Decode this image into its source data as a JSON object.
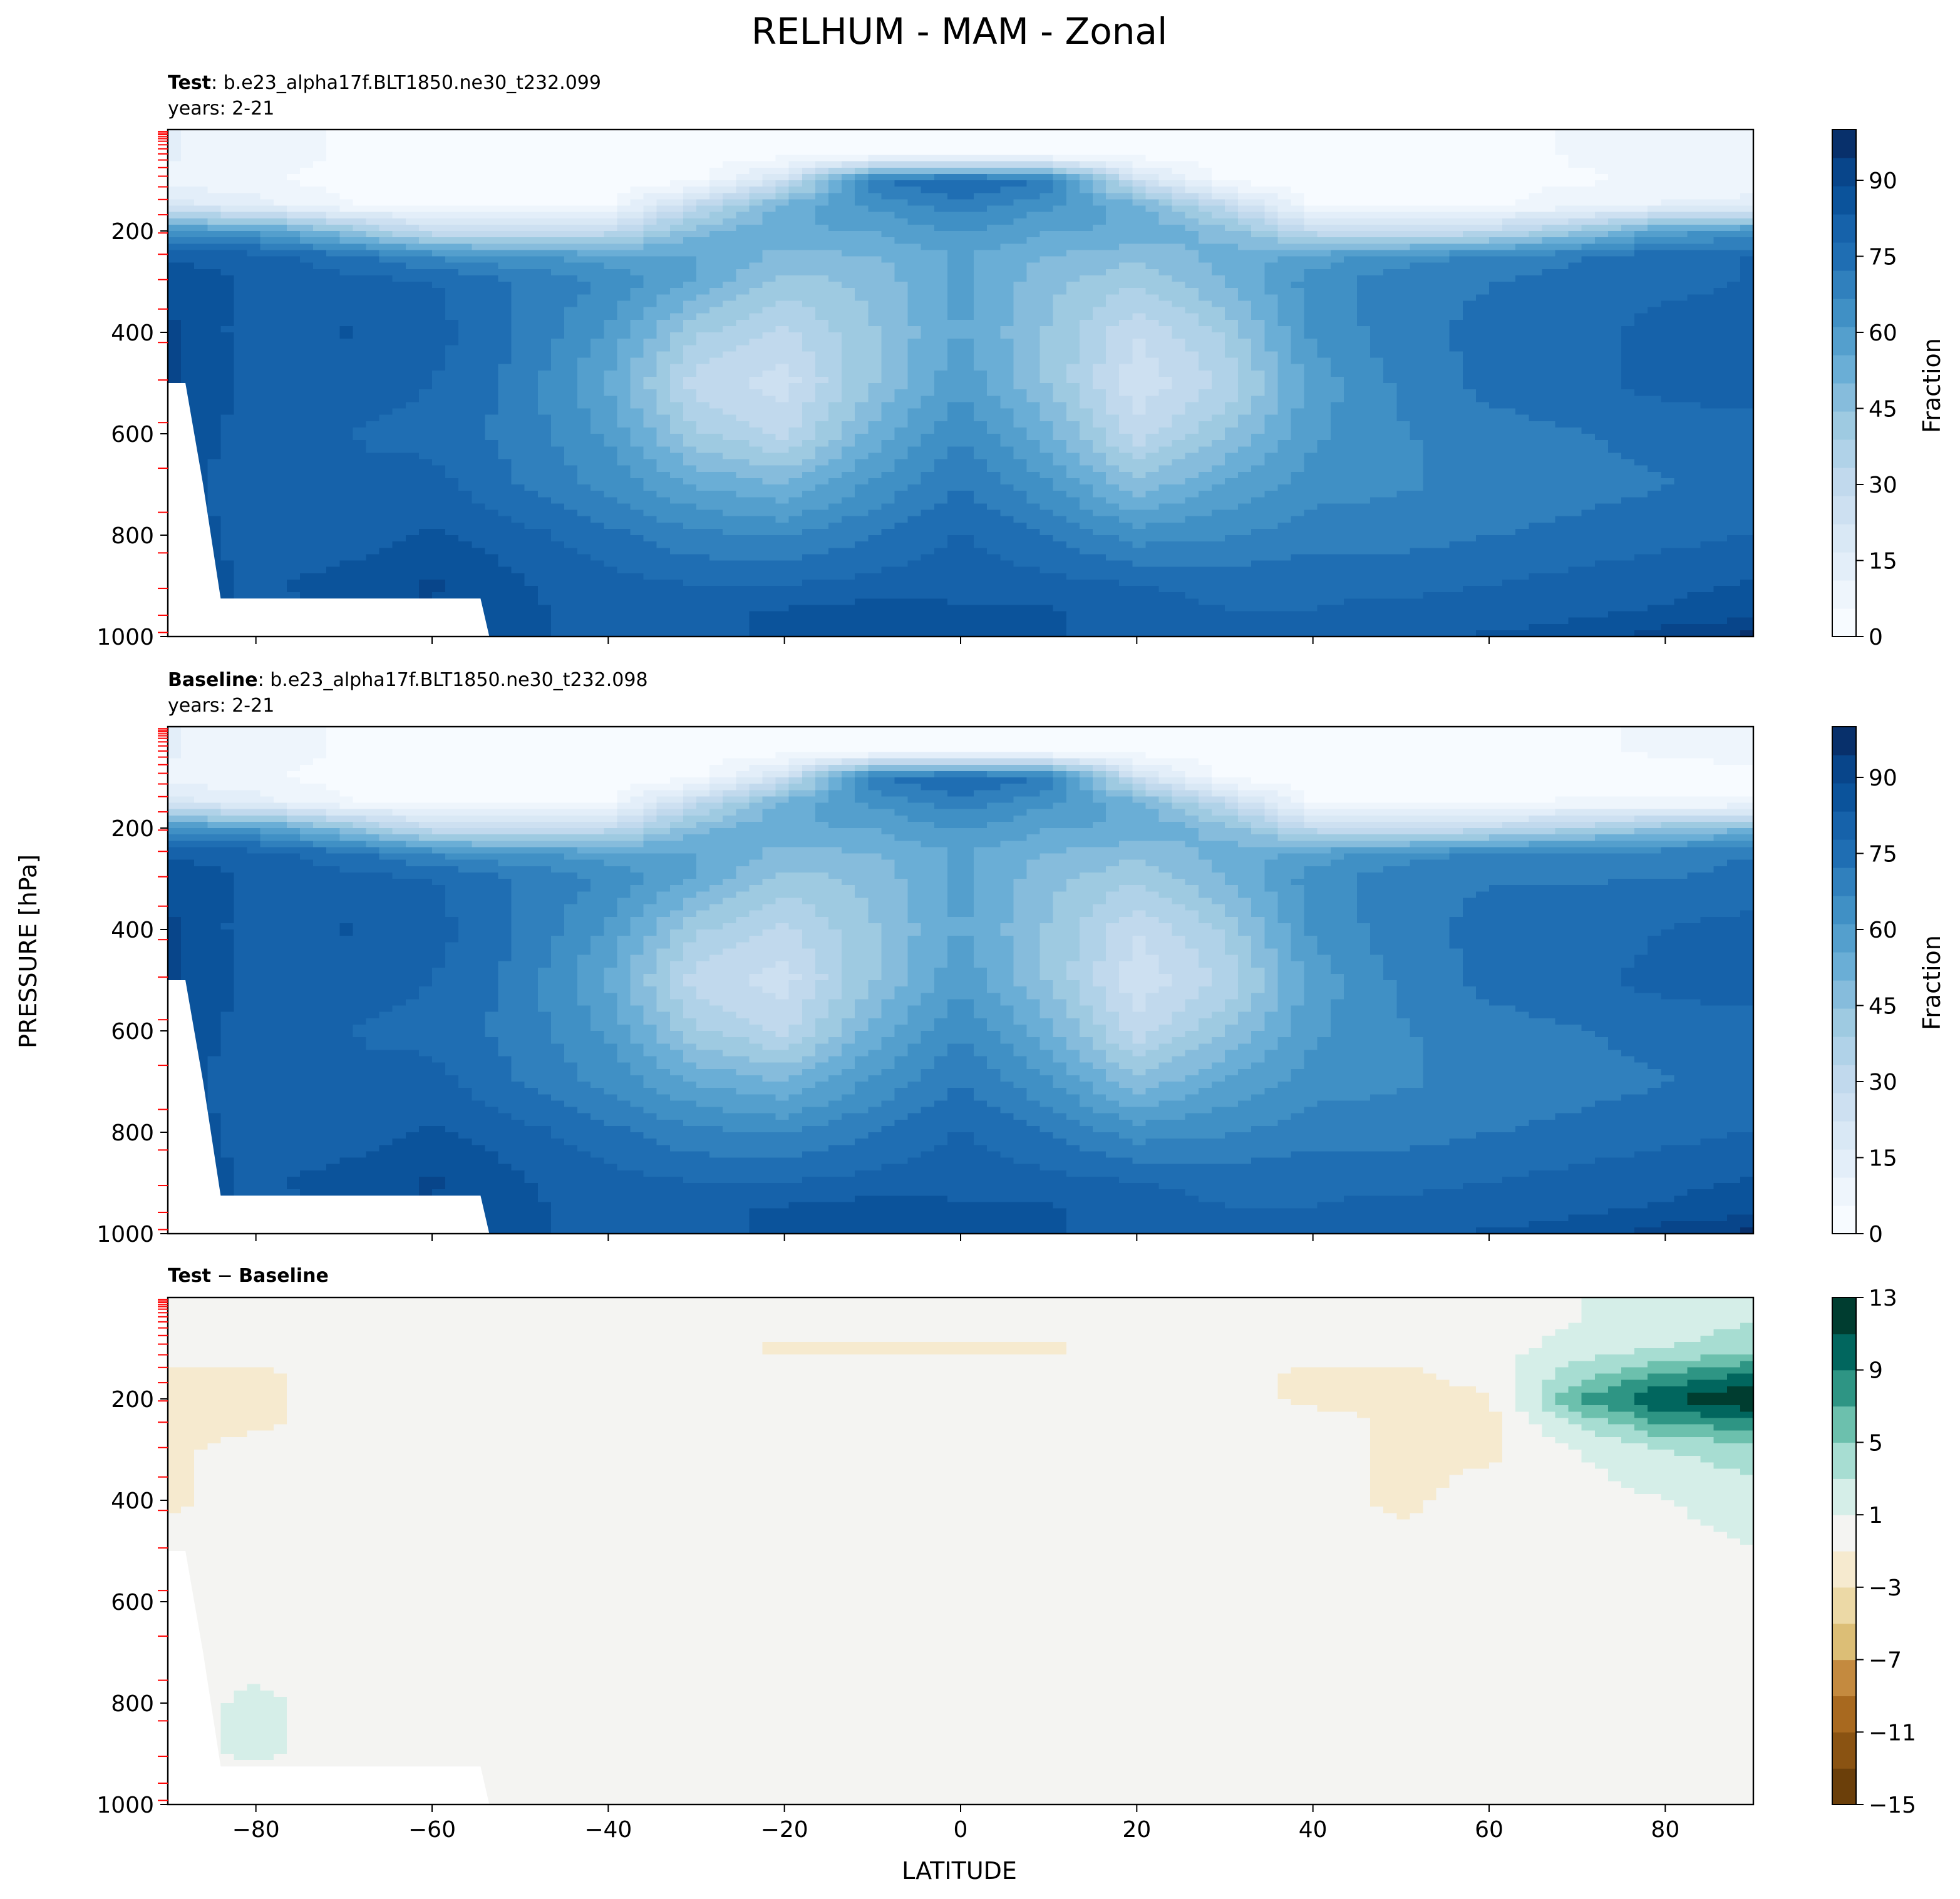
{
  "figure": {
    "title": "RELHUM - MAM - Zonal",
    "ylabel": "PRESSURE [hPa]",
    "xlabel": "LATITUDE"
  },
  "colors": {
    "blues": [
      "#f7fbff",
      "#eef5fc",
      "#e3eef9",
      "#d9e8f5",
      "#cde0f1",
      "#c1d9ed",
      "#b0d2e8",
      "#9ecae1",
      "#86bcdc",
      "#6aaed6",
      "#549fcd",
      "#4090c5",
      "#3080bd",
      "#1f6eb3",
      "#1662aa",
      "#0b539b",
      "#08458a",
      "#08306b"
    ],
    "diff": [
      "#6b3f0a",
      "#8a5312",
      "#a8691f",
      "#c48a3f",
      "#dcbe76",
      "#ecd9a6",
      "#f6eacf",
      "#f4f4f2",
      "#d5eee8",
      "#a7ddd2",
      "#6cc0ad",
      "#2e9584",
      "#01665e",
      "#003d30"
    ],
    "mask_red": "#ff0000"
  },
  "panels": [
    {
      "label_bold": "Test",
      "label_rest": ": b.e23_alpha17f.BLT1850.ne30_t232.099",
      "years": "years: 2-21",
      "colorbar_label": "Fraction"
    },
    {
      "label_bold": "Baseline",
      "label_rest": ": b.e23_alpha17f.BLT1850.ne30_t232.098",
      "years": "years: 2-21",
      "colorbar_label": "Fraction"
    },
    {
      "label_bold": "Test",
      "label_mid": " − ",
      "label_bold2": "Baseline",
      "years": "",
      "colorbar_label": ""
    }
  ],
  "chart_data": [
    {
      "type": "heatmap",
      "title": "Test : b.e23_alpha17f.BLT1850.ne30_t232.099",
      "subtitle": "years: 2-21",
      "xlabel": "LATITUDE",
      "ylabel": "PRESSURE [hPa]",
      "xlim": [
        -90,
        90
      ],
      "ylim": [
        1000,
        0
      ],
      "xticks": [
        -80,
        -60,
        -40,
        -20,
        0,
        20,
        40,
        60,
        80
      ],
      "yticks": [
        200,
        400,
        600,
        800,
        1000
      ],
      "colorbar": {
        "label": "Fraction",
        "range": [
          0,
          100
        ],
        "ticks": [
          0,
          15,
          30,
          45,
          60,
          75,
          90
        ],
        "colormap": "Blues"
      },
      "x": [
        -90,
        -80,
        -70,
        -60,
        -50,
        -40,
        -30,
        -20,
        -10,
        0,
        10,
        20,
        30,
        40,
        50,
        60,
        70,
        80,
        90
      ],
      "y": [
        50,
        100,
        150,
        200,
        250,
        300,
        400,
        500,
        600,
        700,
        800,
        900,
        950,
        1000
      ],
      "z": [
        [
          12,
          8,
          5,
          3,
          3,
          3,
          3,
          3,
          3,
          3,
          3,
          3,
          3,
          3,
          3,
          4,
          6,
          8,
          9
        ],
        [
          8,
          6,
          4,
          3,
          3,
          3,
          3,
          25,
          72,
          78,
          72,
          25,
          3,
          3,
          3,
          4,
          5,
          6,
          7
        ],
        [
          20,
          14,
          6,
          3,
          3,
          5,
          30,
          52,
          62,
          70,
          62,
          52,
          30,
          5,
          3,
          5,
          8,
          12,
          14
        ],
        [
          62,
          60,
          45,
          28,
          25,
          30,
          48,
          55,
          56,
          62,
          56,
          55,
          48,
          30,
          25,
          30,
          42,
          58,
          62
        ],
        [
          82,
          80,
          74,
          66,
          62,
          58,
          56,
          48,
          50,
          56,
          50,
          46,
          52,
          58,
          64,
          68,
          72,
          76,
          78
        ],
        [
          88,
          82,
          80,
          78,
          72,
          66,
          55,
          42,
          46,
          58,
          46,
          40,
          50,
          64,
          70,
          72,
          74,
          76,
          78
        ],
        [
          90,
          80,
          84,
          80,
          72,
          60,
          40,
          32,
          44,
          56,
          44,
          28,
          40,
          62,
          70,
          74,
          76,
          80,
          82
        ],
        [
          90,
          82,
          80,
          78,
          70,
          55,
          30,
          25,
          44,
          60,
          44,
          24,
          34,
          58,
          68,
          74,
          76,
          80,
          80
        ],
        [
          88,
          80,
          78,
          76,
          70,
          60,
          40,
          32,
          52,
          66,
          52,
          30,
          44,
          60,
          66,
          70,
          72,
          74,
          76
        ],
        [
          88,
          78,
          78,
          80,
          72,
          65,
          55,
          50,
          62,
          72,
          62,
          46,
          56,
          64,
          66,
          68,
          70,
          72,
          74
        ],
        [
          90,
          78,
          80,
          84,
          80,
          74,
          68,
          66,
          72,
          78,
          72,
          64,
          66,
          70,
          70,
          72,
          74,
          76,
          78
        ],
        [
          90,
          82,
          86,
          90,
          84,
          80,
          78,
          78,
          80,
          82,
          80,
          78,
          76,
          76,
          76,
          78,
          80,
          82,
          84
        ],
        [
          90,
          80,
          84,
          88,
          84,
          82,
          82,
          84,
          86,
          84,
          84,
          80,
          78,
          78,
          80,
          80,
          82,
          84,
          86
        ],
        [
          90,
          82,
          84,
          88,
          84,
          82,
          82,
          84,
          86,
          84,
          84,
          80,
          78,
          78,
          82,
          84,
          86,
          92,
          96
        ]
      ]
    },
    {
      "type": "heatmap",
      "title": "Baseline : b.e23_alpha17f.BLT1850.ne30_t232.098",
      "subtitle": "years: 2-21",
      "xlabel": "LATITUDE",
      "ylabel": "PRESSURE [hPa]",
      "xlim": [
        -90,
        90
      ],
      "ylim": [
        1000,
        0
      ],
      "xticks": [
        -80,
        -60,
        -40,
        -20,
        0,
        20,
        40,
        60,
        80
      ],
      "yticks": [
        200,
        400,
        600,
        800,
        1000
      ],
      "colorbar": {
        "label": "Fraction",
        "range": [
          0,
          100
        ],
        "ticks": [
          0,
          15,
          30,
          45,
          60,
          75,
          90
        ],
        "colormap": "Blues"
      },
      "x": [
        -90,
        -80,
        -70,
        -60,
        -50,
        -40,
        -30,
        -20,
        -10,
        0,
        10,
        20,
        30,
        40,
        50,
        60,
        70,
        80,
        90
      ],
      "y": [
        50,
        100,
        150,
        200,
        250,
        300,
        400,
        500,
        600,
        700,
        800,
        900,
        950,
        1000
      ],
      "z": [
        [
          12,
          8,
          5,
          3,
          3,
          3,
          3,
          3,
          3,
          3,
          3,
          3,
          3,
          3,
          3,
          4,
          5,
          6,
          7
        ],
        [
          8,
          6,
          4,
          3,
          3,
          3,
          3,
          25,
          72,
          78,
          72,
          25,
          3,
          3,
          3,
          4,
          4,
          4,
          4
        ],
        [
          20,
          14,
          6,
          3,
          3,
          5,
          30,
          52,
          62,
          70,
          62,
          52,
          30,
          5,
          3,
          5,
          6,
          6,
          6
        ],
        [
          62,
          60,
          45,
          28,
          25,
          30,
          48,
          55,
          56,
          62,
          56,
          55,
          48,
          30,
          25,
          30,
          36,
          44,
          48
        ],
        [
          82,
          80,
          74,
          66,
          62,
          58,
          56,
          48,
          50,
          56,
          50,
          46,
          52,
          58,
          64,
          68,
          70,
          70,
          72
        ],
        [
          88,
          82,
          80,
          78,
          72,
          66,
          55,
          42,
          46,
          58,
          46,
          40,
          50,
          64,
          70,
          72,
          72,
          72,
          74
        ],
        [
          90,
          80,
          84,
          80,
          72,
          60,
          40,
          32,
          44,
          56,
          44,
          28,
          40,
          62,
          70,
          74,
          74,
          78,
          80
        ],
        [
          90,
          82,
          80,
          78,
          70,
          55,
          30,
          25,
          44,
          60,
          44,
          24,
          34,
          58,
          68,
          74,
          76,
          80,
          80
        ],
        [
          88,
          80,
          78,
          76,
          70,
          60,
          40,
          32,
          52,
          66,
          52,
          30,
          44,
          60,
          66,
          70,
          72,
          74,
          76
        ],
        [
          88,
          78,
          78,
          80,
          72,
          65,
          55,
          50,
          62,
          72,
          62,
          46,
          56,
          64,
          66,
          68,
          70,
          72,
          74
        ],
        [
          90,
          78,
          80,
          84,
          80,
          74,
          68,
          66,
          72,
          78,
          72,
          64,
          66,
          70,
          70,
          72,
          74,
          76,
          78
        ],
        [
          90,
          82,
          86,
          90,
          84,
          80,
          78,
          78,
          80,
          82,
          80,
          78,
          76,
          76,
          76,
          78,
          80,
          82,
          84
        ],
        [
          90,
          80,
          84,
          88,
          84,
          82,
          82,
          84,
          86,
          84,
          84,
          80,
          78,
          78,
          80,
          80,
          82,
          84,
          86
        ],
        [
          90,
          82,
          84,
          88,
          84,
          82,
          82,
          84,
          86,
          84,
          84,
          80,
          78,
          78,
          82,
          84,
          86,
          92,
          96
        ]
      ]
    },
    {
      "type": "heatmap",
      "title": "Test − Baseline",
      "xlabel": "LATITUDE",
      "ylabel": "PRESSURE [hPa]",
      "xlim": [
        -90,
        90
      ],
      "ylim": [
        1000,
        0
      ],
      "xticks": [
        -80,
        -60,
        -40,
        -20,
        0,
        20,
        40,
        60,
        80
      ],
      "yticks": [
        200,
        400,
        600,
        800,
        1000
      ],
      "colorbar": {
        "label": "",
        "range": [
          -15,
          13
        ],
        "ticks": [
          -15,
          -11,
          -7,
          -3,
          1,
          5,
          9,
          13
        ],
        "colormap": "BrBG"
      },
      "x": [
        -90,
        -80,
        -70,
        -60,
        -50,
        -40,
        -30,
        -20,
        -10,
        0,
        10,
        20,
        30,
        40,
        50,
        60,
        70,
        80,
        90
      ],
      "y": [
        50,
        100,
        150,
        200,
        250,
        300,
        400,
        500,
        600,
        700,
        800,
        900,
        950,
        1000
      ],
      "z": [
        [
          0,
          0,
          0,
          0,
          0,
          0,
          0,
          0,
          0,
          0,
          0,
          0,
          0,
          0,
          0,
          0,
          1,
          2,
          3
        ],
        [
          0,
          0,
          0,
          0,
          0,
          0,
          0,
          -1.5,
          -1.5,
          -1.5,
          -1.5,
          0,
          0,
          0,
          0,
          0,
          2,
          3,
          4
        ],
        [
          -1.5,
          -1.5,
          0,
          0,
          0,
          0,
          0,
          0,
          0,
          0,
          0,
          0,
          0,
          -1.5,
          -1.5,
          0,
          4,
          7,
          9
        ],
        [
          -1.5,
          -1.5,
          0,
          0,
          0,
          0,
          0,
          0,
          0,
          0,
          0,
          0,
          0,
          -1.5,
          -1.5,
          -1.5,
          7,
          11,
          13
        ],
        [
          -1.5,
          -1.5,
          0,
          0,
          0,
          0,
          0,
          0,
          0,
          0,
          0,
          0,
          0,
          0,
          -1.5,
          -1.5,
          3,
          7,
          8
        ],
        [
          -1.5,
          0,
          0,
          0,
          0,
          0,
          0,
          0,
          0,
          0,
          0,
          0,
          0,
          0,
          -1.5,
          -1.5,
          1,
          3,
          4
        ],
        [
          -1.5,
          0,
          0,
          0,
          0,
          0,
          0,
          0,
          0,
          0,
          0,
          0,
          0,
          0,
          -1.5,
          0,
          0,
          1,
          2
        ],
        [
          0,
          0,
          0,
          0,
          0,
          0,
          0,
          0,
          0,
          0,
          0,
          0,
          0,
          0,
          0,
          0,
          0,
          0,
          1
        ],
        [
          0,
          0,
          0,
          0,
          0,
          0,
          0,
          0,
          0,
          0,
          0,
          0,
          0,
          0,
          0,
          0,
          0,
          0,
          0
        ],
        [
          0,
          0,
          0,
          0,
          0,
          0,
          0,
          0,
          0,
          0,
          0,
          0,
          0,
          0,
          0,
          0,
          0,
          0,
          0
        ],
        [
          0,
          1.5,
          0,
          0,
          0,
          0,
          0,
          0,
          0,
          0,
          0,
          0,
          0,
          0,
          0,
          0,
          0,
          0,
          0
        ],
        [
          0,
          1.5,
          0,
          0,
          0,
          0,
          0,
          0,
          0,
          0,
          0,
          0,
          0,
          0,
          0,
          0,
          0,
          0,
          0
        ],
        [
          0,
          0,
          0,
          0,
          0,
          0,
          0,
          0,
          0,
          0,
          0,
          0,
          0,
          0,
          0,
          0,
          0,
          0,
          0
        ],
        [
          0,
          0,
          0,
          0,
          0,
          0,
          0,
          0,
          0,
          0,
          0,
          0,
          0,
          0,
          0,
          0,
          0,
          0,
          0
        ]
      ]
    }
  ]
}
